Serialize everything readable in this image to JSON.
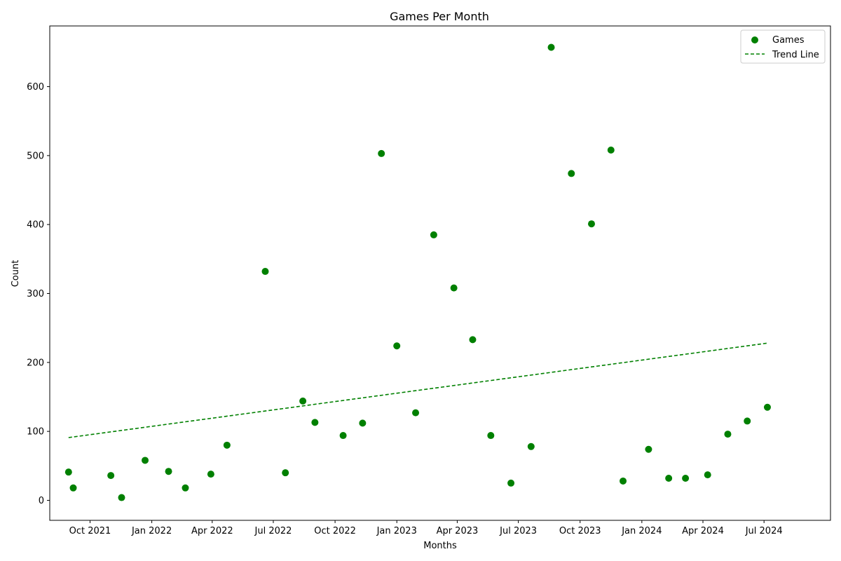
{
  "chart_data": {
    "type": "scatter",
    "title": "Games Per Month",
    "xlabel": "Months",
    "ylabel": "Count",
    "colors": {
      "points": "#008000",
      "trend": "#008000",
      "axis": "#000000"
    },
    "grid": false,
    "legend_position": "top-right",
    "xlim": [
      "2021-08-02",
      "2024-10-08"
    ],
    "ylim": [
      -29,
      688
    ],
    "x_ticks": [
      {
        "date": "2021-10-01",
        "label": "Oct 2021"
      },
      {
        "date": "2022-01-01",
        "label": "Jan 2022"
      },
      {
        "date": "2022-04-01",
        "label": "Apr 2022"
      },
      {
        "date": "2022-07-01",
        "label": "Jul 2022"
      },
      {
        "date": "2022-10-01",
        "label": "Oct 2022"
      },
      {
        "date": "2023-01-01",
        "label": "Jan 2023"
      },
      {
        "date": "2023-04-01",
        "label": "Apr 2023"
      },
      {
        "date": "2023-07-01",
        "label": "Jul 2023"
      },
      {
        "date": "2023-10-01",
        "label": "Oct 2023"
      },
      {
        "date": "2024-01-01",
        "label": "Jan 2024"
      },
      {
        "date": "2024-04-01",
        "label": "Apr 2024"
      },
      {
        "date": "2024-07-01",
        "label": "Jul 2024"
      }
    ],
    "y_ticks": [
      0,
      100,
      200,
      300,
      400,
      500,
      600
    ],
    "series": [
      {
        "name": "Games",
        "kind": "scatter",
        "points": [
          {
            "x": "2021-08-30",
            "y": 41
          },
          {
            "x": "2021-09-06",
            "y": 18
          },
          {
            "x": "2021-11-01",
            "y": 36
          },
          {
            "x": "2021-11-17",
            "y": 4
          },
          {
            "x": "2021-12-22",
            "y": 58
          },
          {
            "x": "2022-01-26",
            "y": 42
          },
          {
            "x": "2022-02-20",
            "y": 18
          },
          {
            "x": "2022-03-30",
            "y": 38
          },
          {
            "x": "2022-04-23",
            "y": 80
          },
          {
            "x": "2022-06-19",
            "y": 332
          },
          {
            "x": "2022-07-19",
            "y": 40
          },
          {
            "x": "2022-08-14",
            "y": 144
          },
          {
            "x": "2022-09-01",
            "y": 113
          },
          {
            "x": "2022-10-13",
            "y": 94
          },
          {
            "x": "2022-11-11",
            "y": 112
          },
          {
            "x": "2022-12-09",
            "y": 503
          },
          {
            "x": "2023-01-01",
            "y": 224
          },
          {
            "x": "2023-01-29",
            "y": 127
          },
          {
            "x": "2023-02-25",
            "y": 385
          },
          {
            "x": "2023-03-27",
            "y": 308
          },
          {
            "x": "2023-04-24",
            "y": 233
          },
          {
            "x": "2023-05-21",
            "y": 94
          },
          {
            "x": "2023-06-20",
            "y": 25
          },
          {
            "x": "2023-07-20",
            "y": 78
          },
          {
            "x": "2023-08-19",
            "y": 657
          },
          {
            "x": "2023-09-18",
            "y": 474
          },
          {
            "x": "2023-10-18",
            "y": 401
          },
          {
            "x": "2023-11-16",
            "y": 508
          },
          {
            "x": "2023-12-04",
            "y": 28
          },
          {
            "x": "2024-01-11",
            "y": 74
          },
          {
            "x": "2024-02-10",
            "y": 32
          },
          {
            "x": "2024-03-06",
            "y": 32
          },
          {
            "x": "2024-04-08",
            "y": 37
          },
          {
            "x": "2024-05-08",
            "y": 96
          },
          {
            "x": "2024-06-06",
            "y": 115
          },
          {
            "x": "2024-07-06",
            "y": 135
          }
        ]
      },
      {
        "name": "Trend Line",
        "kind": "line",
        "style": "dashed",
        "points": [
          {
            "x": "2021-08-30",
            "y": 91
          },
          {
            "x": "2024-07-06",
            "y": 228
          }
        ]
      }
    ]
  }
}
